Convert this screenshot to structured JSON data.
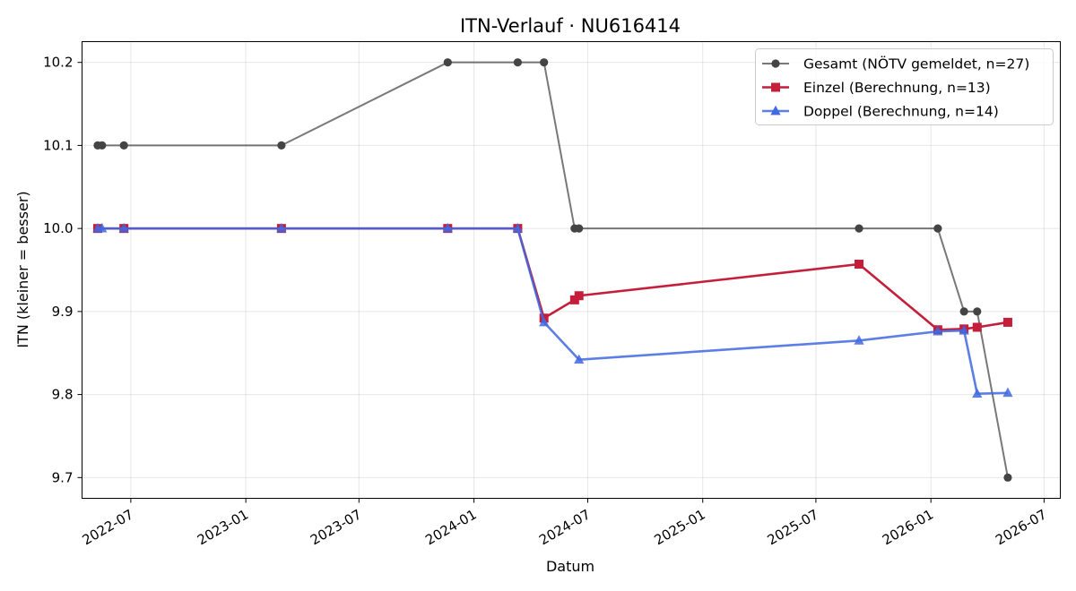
{
  "chart_data": {
    "type": "line",
    "title": "ITN-Verlauf · NU616414",
    "xlabel": "Datum",
    "ylabel": "ITN  (kleiner = besser)",
    "x_type": "date",
    "xlim": [
      "2022-04-14",
      "2026-07-27"
    ],
    "ylim": [
      9.675,
      10.225
    ],
    "y_ticks": [
      9.7,
      9.8,
      9.9,
      10.0,
      10.1,
      10.2
    ],
    "x_ticks": [
      "2022-07",
      "2023-01",
      "2023-07",
      "2024-01",
      "2024-07",
      "2025-01",
      "2025-07",
      "2026-01",
      "2026-07"
    ],
    "grid": true,
    "legend_position": "top-right",
    "series": [
      {
        "name": "Gesamt (NÖTV gemeldet, n=27)",
        "color": "#444444",
        "marker": "circle",
        "points": [
          {
            "x": "2022-05-09",
            "y": 10.1
          },
          {
            "x": "2022-05-16",
            "y": 10.1
          },
          {
            "x": "2022-06-20",
            "y": 10.1
          },
          {
            "x": "2023-02-27",
            "y": 10.1
          },
          {
            "x": "2023-11-20",
            "y": 10.2
          },
          {
            "x": "2024-03-11",
            "y": 10.2
          },
          {
            "x": "2024-04-22",
            "y": 10.2
          },
          {
            "x": "2024-06-10",
            "y": 10.0
          },
          {
            "x": "2024-06-17",
            "y": 10.0
          },
          {
            "x": "2025-09-08",
            "y": 10.0
          },
          {
            "x": "2026-01-12",
            "y": 10.0
          },
          {
            "x": "2026-02-23",
            "y": 9.9
          },
          {
            "x": "2026-03-16",
            "y": 9.9
          },
          {
            "x": "2026-05-04",
            "y": 9.7
          }
        ]
      },
      {
        "name": "Einzel (Berechnung, n=13)",
        "color": "#c41e3a",
        "marker": "square",
        "points": [
          {
            "x": "2022-05-09",
            "y": 10.0
          },
          {
            "x": "2022-06-20",
            "y": 10.0
          },
          {
            "x": "2023-02-27",
            "y": 10.0
          },
          {
            "x": "2023-11-20",
            "y": 10.0
          },
          {
            "x": "2024-03-11",
            "y": 10.0
          },
          {
            "x": "2024-04-22",
            "y": 9.892
          },
          {
            "x": "2024-06-10",
            "y": 9.914
          },
          {
            "x": "2024-06-17",
            "y": 9.919
          },
          {
            "x": "2025-09-08",
            "y": 9.957
          },
          {
            "x": "2026-01-12",
            "y": 9.878
          },
          {
            "x": "2026-02-23",
            "y": 9.879
          },
          {
            "x": "2026-03-16",
            "y": 9.881
          },
          {
            "x": "2026-05-04",
            "y": 9.887
          }
        ]
      },
      {
        "name": "Doppel (Berechnung, n=14)",
        "color": "#4169e1",
        "marker": "triangle",
        "points": [
          {
            "x": "2022-05-09",
            "y": 10.0
          },
          {
            "x": "2022-05-16",
            "y": 10.0
          },
          {
            "x": "2022-06-20",
            "y": 10.0
          },
          {
            "x": "2023-02-27",
            "y": 10.0
          },
          {
            "x": "2023-11-20",
            "y": 10.0
          },
          {
            "x": "2024-03-11",
            "y": 10.0
          },
          {
            "x": "2024-04-22",
            "y": 9.887
          },
          {
            "x": "2024-06-17",
            "y": 9.842
          },
          {
            "x": "2025-09-08",
            "y": 9.865
          },
          {
            "x": "2026-01-12",
            "y": 9.876
          },
          {
            "x": "2026-02-23",
            "y": 9.877
          },
          {
            "x": "2026-03-16",
            "y": 9.801
          },
          {
            "x": "2026-05-04",
            "y": 9.802
          }
        ]
      }
    ]
  }
}
